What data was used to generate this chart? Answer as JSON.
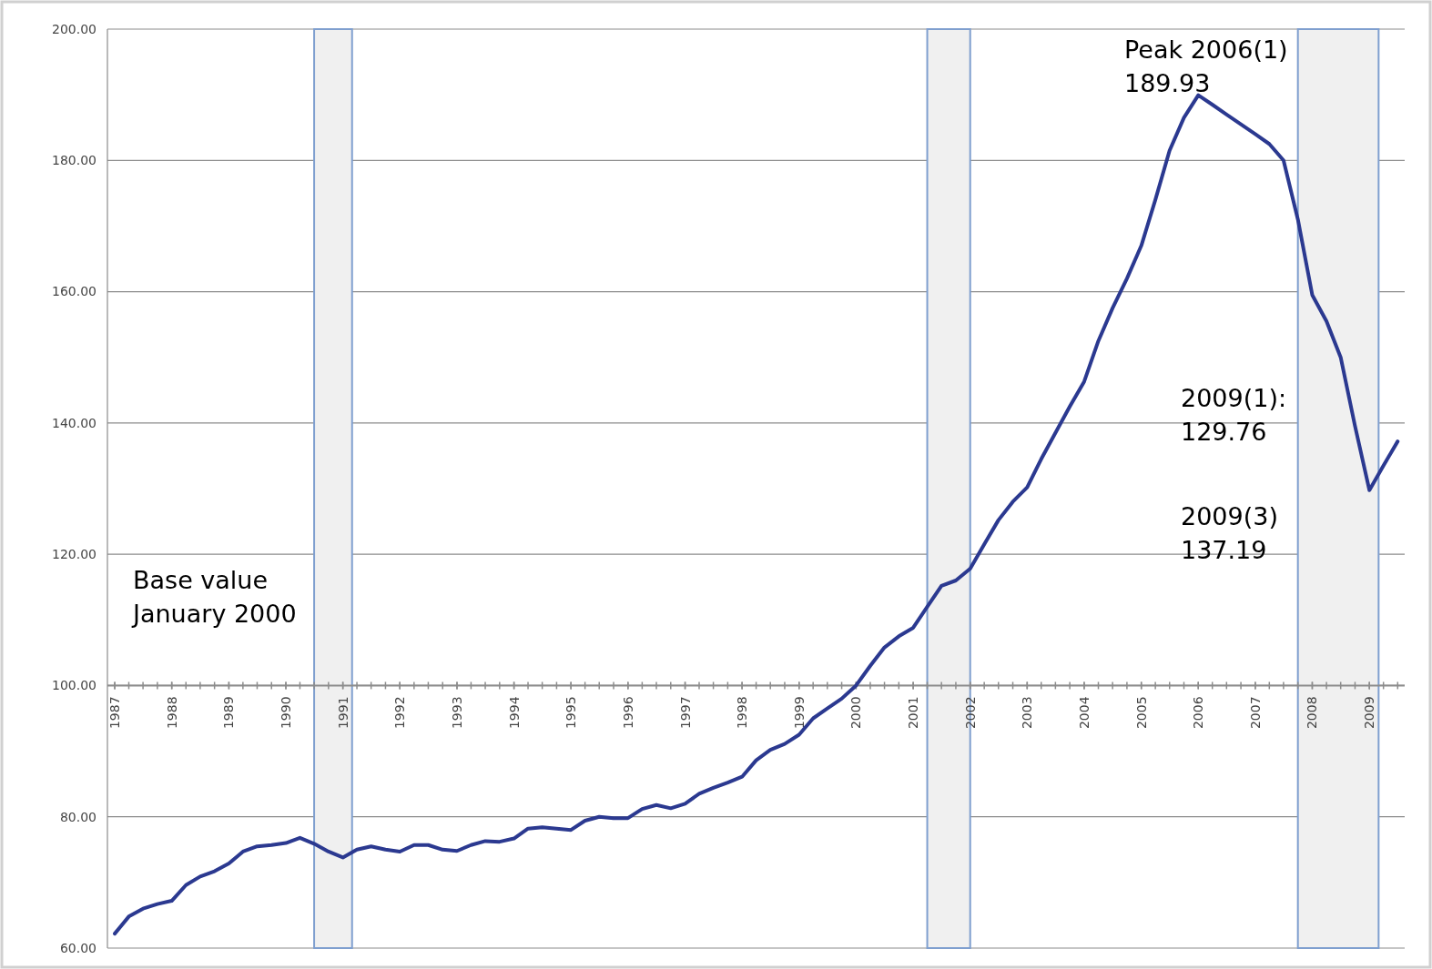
{
  "chart_data": {
    "type": "line",
    "x": [
      "1987-01",
      "1987-04",
      "1987-07",
      "1987-10",
      "1988-01",
      "1988-04",
      "1988-07",
      "1988-10",
      "1989-01",
      "1989-04",
      "1989-07",
      "1989-10",
      "1990-01",
      "1990-04",
      "1990-07",
      "1990-10",
      "1991-01",
      "1991-04",
      "1991-07",
      "1991-10",
      "1992-01",
      "1992-04",
      "1992-07",
      "1992-10",
      "1993-01",
      "1993-04",
      "1993-07",
      "1993-10",
      "1994-01",
      "1994-04",
      "1994-07",
      "1994-10",
      "1995-01",
      "1995-04",
      "1995-07",
      "1995-10",
      "1996-01",
      "1996-04",
      "1996-07",
      "1996-10",
      "1997-01",
      "1997-04",
      "1997-07",
      "1997-10",
      "1998-01",
      "1998-04",
      "1998-07",
      "1998-10",
      "1999-01",
      "1999-04",
      "1999-07",
      "1999-10",
      "2000-01",
      "2000-04",
      "2000-07",
      "2000-10",
      "2001-01",
      "2001-04",
      "2001-07",
      "2001-10",
      "2002-01",
      "2002-04",
      "2002-07",
      "2002-10",
      "2003-01",
      "2003-04",
      "2003-07",
      "2003-10",
      "2004-01",
      "2004-04",
      "2004-07",
      "2004-10",
      "2005-01",
      "2005-04",
      "2005-07",
      "2005-10",
      "2006-01",
      "2006-04",
      "2006-07",
      "2006-10",
      "2007-01",
      "2007-04",
      "2007-07",
      "2007-10",
      "2008-01",
      "2008-04",
      "2008-07",
      "2008-10",
      "2009-01",
      "2009-04",
      "2009-07"
    ],
    "series": [
      {
        "color": "#2b3990",
        "values": [
          62.2,
          64.8,
          66.0,
          66.7,
          67.2,
          69.6,
          70.9,
          71.7,
          72.9,
          74.7,
          75.5,
          75.7,
          76.0,
          76.8,
          75.9,
          74.7,
          73.8,
          75.0,
          75.5,
          75.0,
          74.7,
          75.7,
          75.7,
          75.0,
          74.8,
          75.7,
          76.3,
          76.2,
          76.7,
          78.2,
          78.4,
          78.2,
          78.0,
          79.4,
          80.0,
          79.8,
          79.8,
          81.2,
          81.8,
          81.3,
          82.0,
          83.5,
          84.4,
          85.2,
          86.1,
          88.6,
          90.2,
          91.1,
          92.5,
          95.0,
          96.5,
          98.0,
          100.0,
          103.0,
          105.8,
          107.5,
          108.8,
          112.0,
          115.2,
          116.0,
          117.8,
          121.5,
          125.2,
          128.0,
          130.2,
          134.5,
          138.5,
          142.5,
          146.3,
          152.5,
          157.5,
          162.0,
          167.0,
          174.0,
          181.5,
          186.5,
          189.93,
          188.5,
          187.0,
          185.5,
          184.0,
          182.5,
          180.0,
          171.0,
          159.5,
          155.5,
          150.0,
          139.5,
          129.76,
          133.5,
          137.19
        ]
      }
    ],
    "xlim": [
      "1986-11-15",
      "2009-08-15"
    ],
    "xticks": [
      "1987",
      "1988",
      "1989",
      "1990",
      "1991",
      "1992",
      "1993",
      "1994",
      "1995",
      "1996",
      "1997",
      "1998",
      "1999",
      "2000",
      "2001",
      "2002",
      "2003",
      "2004",
      "2005",
      "2006",
      "2007",
      "2008",
      "2009"
    ],
    "ylim": [
      60,
      200
    ],
    "yticks": [
      {
        "value": 60,
        "label": "60.00"
      },
      {
        "value": 80,
        "label": "80.00"
      },
      {
        "value": 100,
        "label": "100.00"
      },
      {
        "value": 120,
        "label": "120.00"
      },
      {
        "value": 140,
        "label": "140.00"
      },
      {
        "value": 160,
        "label": "160.00"
      },
      {
        "value": 180,
        "label": "180.00"
      },
      {
        "value": 200,
        "label": "200.00"
      }
    ],
    "grid": "y",
    "bands": [
      {
        "axis": "x",
        "from": "1990-07",
        "to": "1991-03",
        "color": "#f0f0f0"
      },
      {
        "axis": "x",
        "from": "2001-04",
        "to": "2002-01",
        "color": "#f0f0f0"
      },
      {
        "axis": "x",
        "from": "2007-10",
        "to": "2009-03",
        "color": "#f0f0f0"
      }
    ],
    "annotations": [
      "Base value\nJanuary 2000",
      "Peak 2006(1)\n189.93",
      "2009(1):\n129.76",
      "2009(3)\n137.19"
    ],
    "line_style": "solid",
    "marker": "none"
  }
}
